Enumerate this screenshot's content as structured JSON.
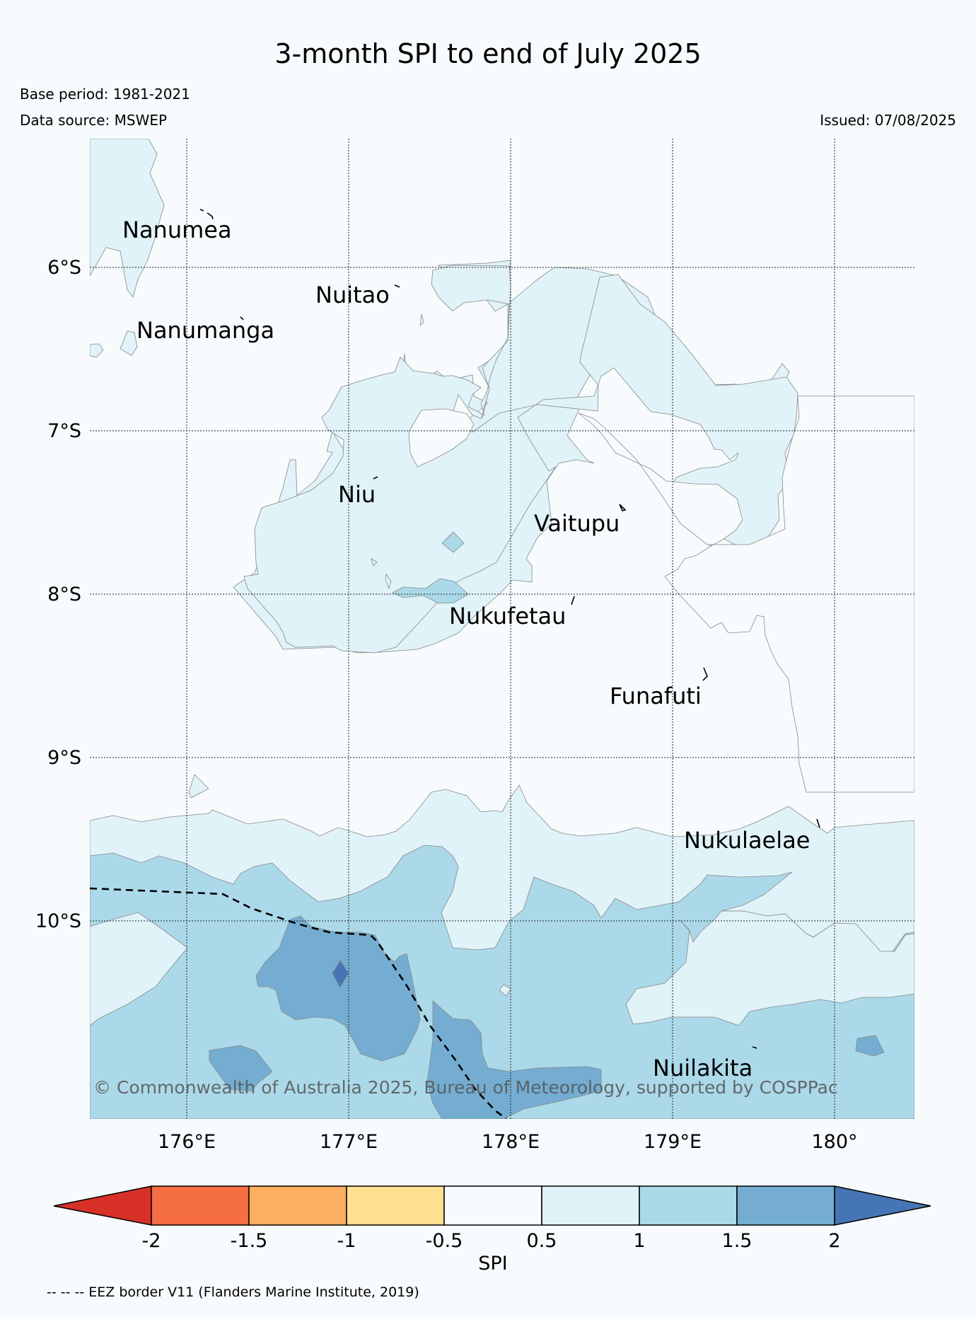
{
  "header": {
    "title": "3-month SPI to end of July 2025",
    "base_period": "Base period: 1981-2021",
    "data_source": "Data source: MSWEP",
    "issued": "Issued: 07/08/2025"
  },
  "map": {
    "lat_labels": [
      "6°S",
      "7°S",
      "8°S",
      "9°S",
      "10°S"
    ],
    "lon_labels": [
      "176°E",
      "177°E",
      "178°E",
      "179°E",
      "180°"
    ],
    "places": [
      "Nanumea",
      "Nuitao",
      "Nanumanga",
      "Niu",
      "Vaitupu",
      "Nukufetau",
      "Funafuti",
      "Nukulaelae",
      "Nuilakita"
    ],
    "copyright": "© Commonwealth of Australia 2025, Bureau of Meteorology, supported by COSPPac"
  },
  "legend": {
    "tick_labels": [
      "-2",
      "-1.5",
      "-1",
      "-0.5",
      "0.5",
      "1",
      "1.5",
      "2"
    ],
    "title": "SPI",
    "colors": [
      "#d73027",
      "#f46d43",
      "#fdae61",
      "#fee090",
      "#f7fbfd",
      "#e0f3f8",
      "#abd9e9",
      "#74add1",
      "#4575b4"
    ]
  },
  "footnote": "-- -- -- EEZ border V11 (Flanders Marine Institute, 2019)"
}
